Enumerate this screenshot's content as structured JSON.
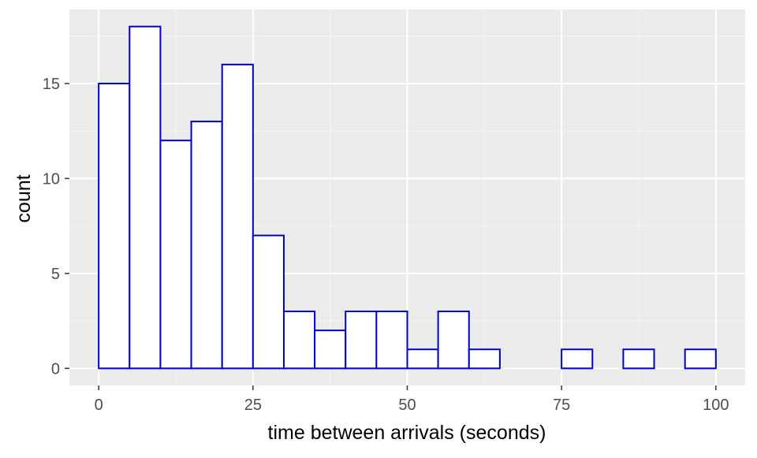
{
  "chart_data": {
    "type": "bar",
    "subtype": "histogram",
    "title": "",
    "xlabel": "time between arrivals (seconds)",
    "ylabel": "count",
    "bin_width": 5,
    "bins": [
      {
        "x0": 0,
        "x1": 5,
        "count": 15
      },
      {
        "x0": 5,
        "x1": 10,
        "count": 18
      },
      {
        "x0": 10,
        "x1": 15,
        "count": 12
      },
      {
        "x0": 15,
        "x1": 20,
        "count": 13
      },
      {
        "x0": 20,
        "x1": 25,
        "count": 16
      },
      {
        "x0": 25,
        "x1": 30,
        "count": 7
      },
      {
        "x0": 30,
        "x1": 35,
        "count": 3
      },
      {
        "x0": 35,
        "x1": 40,
        "count": 2
      },
      {
        "x0": 40,
        "x1": 45,
        "count": 3
      },
      {
        "x0": 45,
        "x1": 50,
        "count": 3
      },
      {
        "x0": 50,
        "x1": 55,
        "count": 1
      },
      {
        "x0": 55,
        "x1": 60,
        "count": 3
      },
      {
        "x0": 60,
        "x1": 65,
        "count": 1
      },
      {
        "x0": 65,
        "x1": 70,
        "count": 0
      },
      {
        "x0": 70,
        "x1": 75,
        "count": 0
      },
      {
        "x0": 75,
        "x1": 80,
        "count": 1
      },
      {
        "x0": 80,
        "x1": 85,
        "count": 0
      },
      {
        "x0": 85,
        "x1": 90,
        "count": 1
      },
      {
        "x0": 90,
        "x1": 95,
        "count": 0
      },
      {
        "x0": 95,
        "x1": 100,
        "count": 1
      }
    ],
    "xlim": [
      -4.75,
      104.75
    ],
    "ylim": [
      -0.9,
      18.9
    ],
    "xticks": [
      0,
      25,
      50,
      75,
      100
    ],
    "xtick_labels": [
      "0",
      "25",
      "50",
      "75",
      "100"
    ],
    "yticks": [
      0,
      5,
      10,
      15
    ],
    "ytick_labels": [
      "0",
      "5",
      "10",
      "15"
    ],
    "grid": true,
    "legend": "none",
    "colors": {
      "panel_background": "#ebebeb",
      "grid_major": "#ffffff",
      "grid_minor": "#f5f5f5",
      "bar_fill": "#ffffff",
      "bar_outline": "#0000cd"
    }
  }
}
